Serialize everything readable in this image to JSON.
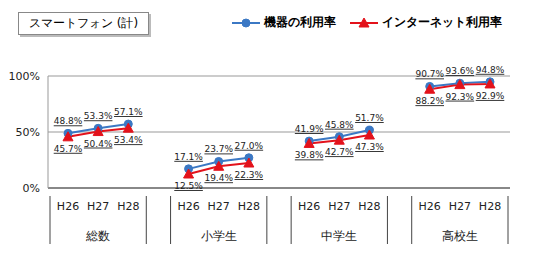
{
  "chart_data": {
    "type": "line",
    "title": "スマートフォン (計)",
    "categories": [
      "H26",
      "H27",
      "H28",
      null,
      "H26",
      "H27",
      "H28",
      null,
      "H26",
      "H27",
      "H28",
      null,
      "H26",
      "H27",
      "H28"
    ],
    "groups": [
      "総数",
      "小学生",
      "中学生",
      "高校生"
    ],
    "series": [
      {
        "name": "機器の利用率",
        "color": "#3b78c4",
        "marker": "circle",
        "values": [
          48.8,
          53.3,
          57.1,
          null,
          17.1,
          23.7,
          27.0,
          null,
          41.9,
          45.8,
          51.7,
          null,
          90.7,
          93.6,
          94.8
        ],
        "value_labels": [
          "48.8%",
          "53.3%",
          "57.1%",
          null,
          "17.1%",
          "23.7%",
          "27.0%",
          null,
          "41.9%",
          "45.8%",
          "51.7%",
          null,
          "90.7%",
          "93.6%",
          "94.8%"
        ]
      },
      {
        "name": "インターネット利用率",
        "color": "#e3121b",
        "marker": "triangle",
        "values": [
          45.7,
          50.4,
          53.4,
          null,
          12.5,
          19.4,
          22.3,
          null,
          39.8,
          42.7,
          47.3,
          null,
          88.2,
          92.3,
          92.9
        ],
        "value_labels": [
          "45.7%",
          "50.4%",
          "53.4%",
          null,
          "12.5%",
          "19.4%",
          "22.3%",
          null,
          "39.8%",
          "42.7%",
          "47.3%",
          null,
          "88.2%",
          "92.3%",
          "92.9%"
        ]
      }
    ],
    "ylim": [
      0,
      100
    ],
    "yticks": [
      {
        "value": 0,
        "label": "0%"
      },
      {
        "value": 50,
        "label": "50%"
      },
      {
        "value": 100,
        "label": "100%"
      }
    ],
    "grid": true,
    "legend": "top-right",
    "data_labels": true
  }
}
